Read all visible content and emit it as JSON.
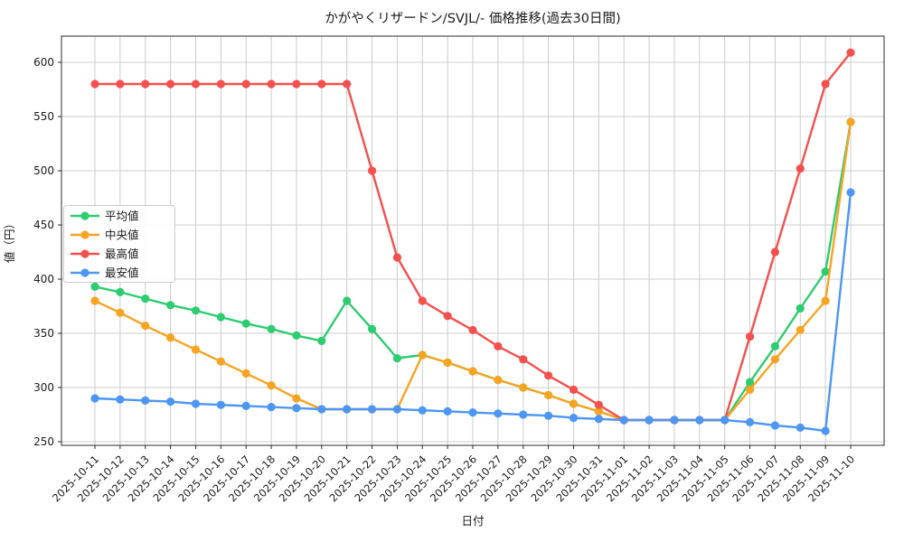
{
  "chart_data": {
    "type": "line",
    "title": "かがやくリザードン/SVJL/- 価格推移(過去30日間)",
    "xlabel": "日付",
    "ylabel": "値（円）",
    "ylim": [
      246,
      624
    ],
    "yticks": [
      250,
      300,
      350,
      400,
      450,
      500,
      550,
      600
    ],
    "grid": true,
    "legend_position": "upper-left",
    "x": [
      "2025-10-11",
      "2025-10-12",
      "2025-10-13",
      "2025-10-14",
      "2025-10-15",
      "2025-10-16",
      "2025-10-17",
      "2025-10-18",
      "2025-10-19",
      "2025-10-20",
      "2025-10-21",
      "2025-10-22",
      "2025-10-23",
      "2025-10-24",
      "2025-10-25",
      "2025-10-26",
      "2025-10-27",
      "2025-10-28",
      "2025-10-29",
      "2025-10-30",
      "2025-10-31",
      "2025-11-01",
      "2025-11-02",
      "2025-11-03",
      "2025-11-04",
      "2025-11-05",
      "2025-11-06",
      "2025-11-07",
      "2025-11-08",
      "2025-11-09",
      "2025-11-10"
    ],
    "series": [
      {
        "name": "平均値",
        "key": "average",
        "color": "#2ecc71",
        "values": [
          393,
          388,
          382,
          376,
          371,
          365,
          359,
          354,
          348,
          343,
          380,
          354,
          327,
          330,
          323,
          315,
          307,
          300,
          293,
          285,
          278,
          270,
          270,
          270,
          270,
          270,
          305,
          338,
          373,
          407,
          545
        ]
      },
      {
        "name": "中央値",
        "key": "median",
        "color": "#f7a423",
        "values": [
          380,
          369,
          357,
          346,
          335,
          324,
          313,
          302,
          290,
          280,
          280,
          280,
          280,
          330,
          323,
          315,
          307,
          300,
          293,
          285,
          278,
          270,
          270,
          270,
          270,
          270,
          298,
          326,
          353,
          380,
          545
        ]
      },
      {
        "name": "最高値",
        "key": "max",
        "color": "#f4504e",
        "values": [
          580,
          580,
          580,
          580,
          580,
          580,
          580,
          580,
          580,
          580,
          580,
          500,
          420,
          380,
          366,
          353,
          338,
          326,
          311,
          298,
          284,
          270,
          270,
          270,
          270,
          270,
          347,
          425,
          502,
          580,
          609
        ]
      },
      {
        "name": "最安値",
        "key": "min",
        "color": "#4d96f5",
        "values": [
          290,
          289,
          288,
          287,
          285,
          284,
          283,
          282,
          281,
          280,
          280,
          280,
          280,
          279,
          278,
          277,
          276,
          275,
          274,
          272,
          271,
          270,
          270,
          270,
          270,
          270,
          268,
          265,
          263,
          260,
          480
        ]
      }
    ],
    "style": {
      "grid_color": "#cccccc",
      "spine_color": "#2b2b2b",
      "background": "#ffffff"
    }
  }
}
